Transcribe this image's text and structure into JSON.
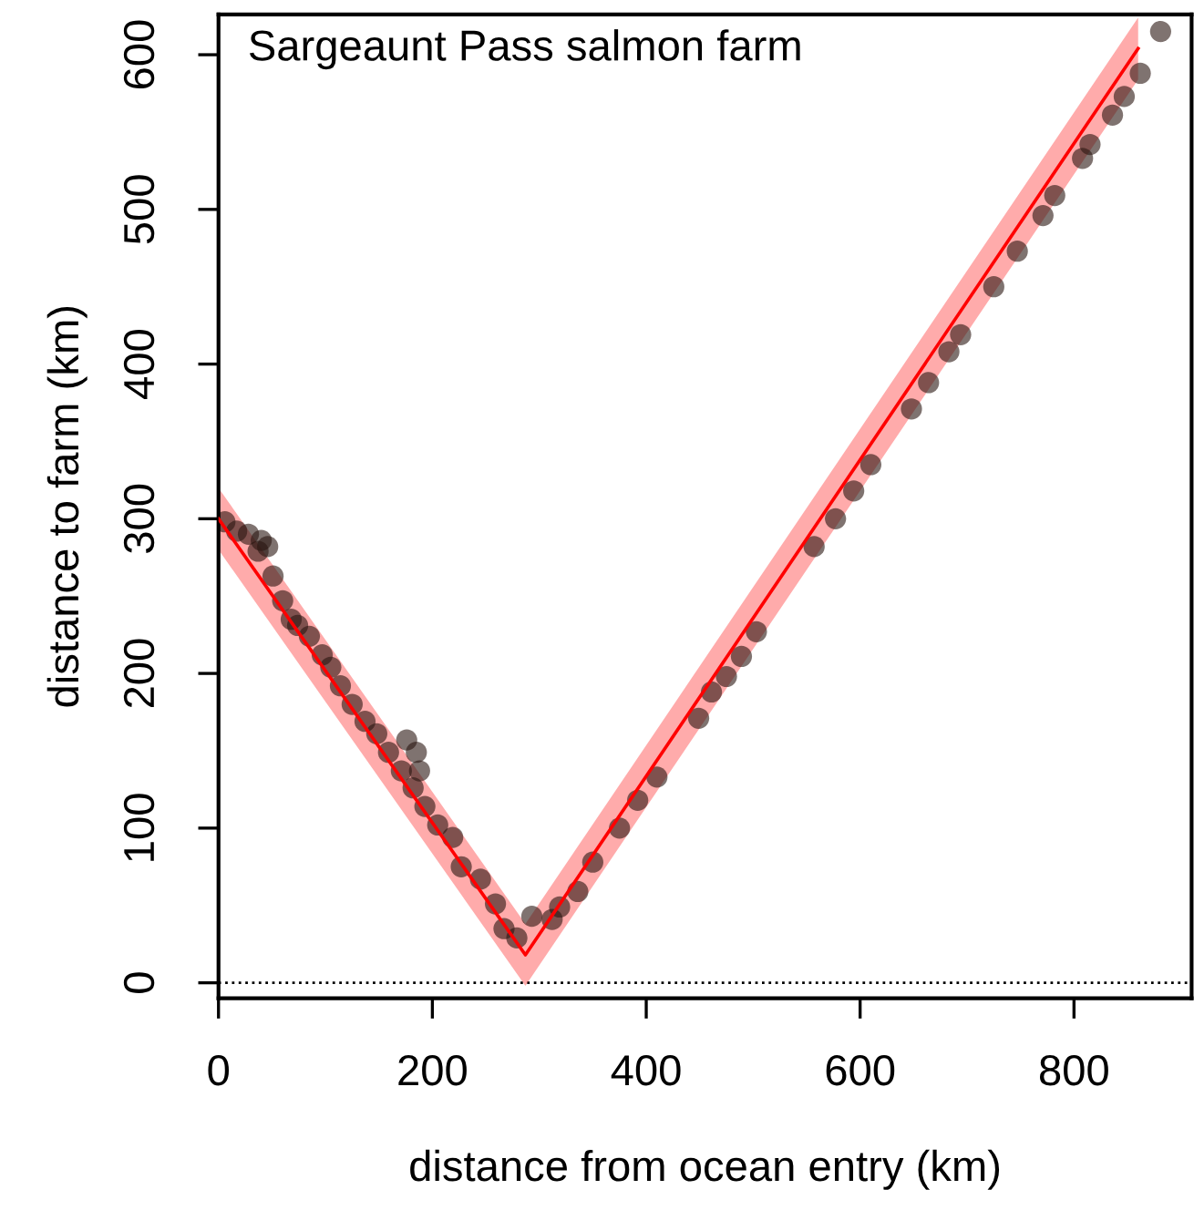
{
  "chart_data": {
    "type": "scatter",
    "title": "Sargeaunt Pass salmon farm",
    "xlabel": "distance from ocean entry (km)",
    "ylabel": "distance to farm (km)",
    "xlim": [
      0,
      910
    ],
    "ylim": [
      -10,
      626
    ],
    "xticks": [
      0,
      200,
      400,
      600,
      800
    ],
    "yticks": [
      0,
      100,
      200,
      300,
      400,
      500,
      600
    ],
    "grid": false,
    "ref_lines": [
      {
        "axis": "y",
        "value": 0,
        "line_style": "dotted",
        "color": "#000000"
      }
    ],
    "series": [
      {
        "type": "line",
        "color": "#ff0000",
        "x": [
          0,
          287,
          860
        ],
        "values": [
          300,
          18,
          604
        ],
        "lower": [
          280,
          -2,
          584
        ],
        "upper": [
          320,
          38,
          624
        ]
      },
      {
        "marker": "circle",
        "color": "#2a1510",
        "x": [
          6,
          17,
          28,
          37,
          40,
          46,
          51,
          60,
          68,
          74,
          85,
          97,
          105,
          114,
          125,
          137,
          148,
          159,
          171,
          176,
          182,
          185,
          188,
          193,
          205,
          219,
          227,
          245,
          259,
          267,
          279,
          293,
          312,
          319,
          336,
          350,
          375,
          392,
          410,
          449,
          461,
          475,
          489,
          503,
          557,
          577,
          594,
          610,
          648,
          664,
          683,
          694,
          725,
          747,
          771,
          782,
          808,
          815,
          836,
          847,
          862,
          881
        ],
        "values": [
          298,
          292,
          290,
          279,
          286,
          282,
          263,
          247,
          235,
          231,
          224,
          212,
          204,
          192,
          180,
          169,
          161,
          149,
          137,
          157,
          126,
          149,
          137,
          114,
          102,
          94,
          75,
          67,
          51,
          35,
          29,
          43,
          41,
          49,
          59,
          78,
          100,
          118,
          133,
          171,
          188,
          198,
          211,
          227,
          282,
          300,
          318,
          335,
          371,
          388,
          408,
          419,
          450,
          473,
          496,
          509,
          533,
          542,
          561,
          573,
          588,
          615
        ]
      }
    ]
  }
}
